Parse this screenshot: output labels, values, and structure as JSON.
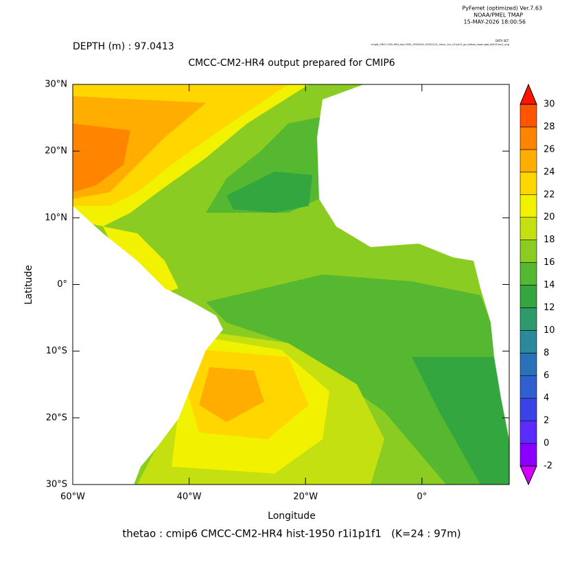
{
  "chart_data": {
    "type": "contour_map",
    "header": {
      "program": "PyFerret (optimized) Ver.7.63",
      "lab": "NOAA/PMEL TMAP",
      "date": "15-MAY-2026 18:00:56"
    },
    "depth_label": "DEPTH (m) : 97.0413",
    "dataset_heading": "DATA SET:",
    "dataset_name": "cmip6_CMCC-CM2-HR4_hist-1950_19500101-20051231_0mon_1m_r1i1p1f1_gn_thetao_mean.gdd_all025-lev1_orig",
    "title": "CMCC-CM2-HR4 output prepared for CMIP6",
    "xlabel": "Longitude",
    "ylabel": "Latitude",
    "footer": "thetao : cmip6 CMCC-CM2-HR4 hist-1950 r1i1p1f1   (K=24 : 97m)",
    "xlim": [
      -60,
      15
    ],
    "ylim": [
      -30,
      30
    ],
    "xticks": [
      {
        "value": -60,
        "label": "60°W"
      },
      {
        "value": -40,
        "label": "40°W"
      },
      {
        "value": -20,
        "label": "20°W"
      },
      {
        "value": 0,
        "label": "0°"
      }
    ],
    "yticks": [
      {
        "value": 30,
        "label": "30°N"
      },
      {
        "value": 20,
        "label": "20°N"
      },
      {
        "value": 10,
        "label": "10°N"
      },
      {
        "value": 0,
        "label": "0°"
      },
      {
        "value": -10,
        "label": "10°S"
      },
      {
        "value": -20,
        "label": "20°S"
      },
      {
        "value": -30,
        "label": "30°S"
      }
    ],
    "colorbar": {
      "levels": [
        -2,
        0,
        2,
        4,
        6,
        8,
        10,
        12,
        14,
        16,
        18,
        20,
        22,
        24,
        26,
        28,
        30
      ],
      "colors": [
        "#8a00ff",
        "#5a2cff",
        "#3a44e6",
        "#3060d0",
        "#2a72b8",
        "#2a8a9c",
        "#2e9a6c",
        "#33a640",
        "#55b830",
        "#8acc22",
        "#c4e010",
        "#f2f200",
        "#ffd600",
        "#ffae00",
        "#ff8400",
        "#ff5400"
      ],
      "under_color": "#d400ff",
      "over_color": "#ff1400"
    }
  }
}
